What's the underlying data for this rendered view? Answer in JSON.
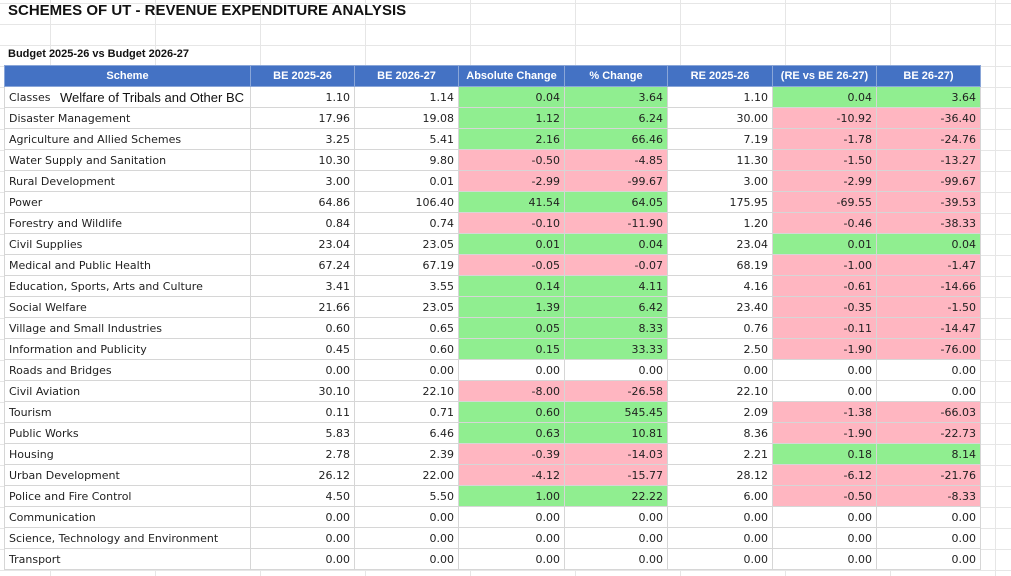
{
  "title": "SCHEMES OF UT - REVENUE EXPENDITURE ANALYSIS",
  "subtitle": "Budget 2025-26 vs Budget 2026-27",
  "headers": [
    "Scheme",
    "BE 2025-26",
    "BE 2026-27",
    "Absolute Change",
    "% Change",
    "RE 2025-26",
    "(RE vs BE 26-27)",
    "BE 26-27)"
  ],
  "overflow_text": "Welfare of Tribals and Other BC",
  "colors": {
    "header_bg": "#4472c4",
    "positive": "#90ee90",
    "negative": "#ffb6c1"
  },
  "rows": [
    {
      "scheme": "Classes",
      "be25": "1.10",
      "be26": "1.14",
      "abs": "0.04",
      "pct": "3.64",
      "re25": "1.10",
      "revbe": "0.04",
      "be2627": "3.64",
      "abs_s": "pos",
      "pct_s": "pos",
      "revbe_s": "pos",
      "be2627_s": "pos"
    },
    {
      "scheme": "Disaster Management",
      "be25": "17.96",
      "be26": "19.08",
      "abs": "1.12",
      "pct": "6.24",
      "re25": "30.00",
      "revbe": "-10.92",
      "be2627": "-36.40",
      "abs_s": "pos",
      "pct_s": "pos",
      "revbe_s": "neg",
      "be2627_s": "neg"
    },
    {
      "scheme": "Agriculture and Allied Schemes",
      "be25": "3.25",
      "be26": "5.41",
      "abs": "2.16",
      "pct": "66.46",
      "re25": "7.19",
      "revbe": "-1.78",
      "be2627": "-24.76",
      "abs_s": "pos",
      "pct_s": "pos",
      "revbe_s": "neg",
      "be2627_s": "neg"
    },
    {
      "scheme": "Water Supply and Sanitation",
      "be25": "10.30",
      "be26": "9.80",
      "abs": "-0.50",
      "pct": "-4.85",
      "re25": "11.30",
      "revbe": "-1.50",
      "be2627": "-13.27",
      "abs_s": "neg",
      "pct_s": "neg",
      "revbe_s": "neg",
      "be2627_s": "neg"
    },
    {
      "scheme": "Rural Development",
      "be25": "3.00",
      "be26": "0.01",
      "abs": "-2.99",
      "pct": "-99.67",
      "re25": "3.00",
      "revbe": "-2.99",
      "be2627": "-99.67",
      "abs_s": "neg",
      "pct_s": "neg",
      "revbe_s": "neg",
      "be2627_s": "neg"
    },
    {
      "scheme": "Power",
      "be25": "64.86",
      "be26": "106.40",
      "abs": "41.54",
      "pct": "64.05",
      "re25": "175.95",
      "revbe": "-69.55",
      "be2627": "-39.53",
      "abs_s": "pos",
      "pct_s": "pos",
      "revbe_s": "neg",
      "be2627_s": "neg"
    },
    {
      "scheme": "Forestry and Wildlife",
      "be25": "0.84",
      "be26": "0.74",
      "abs": "-0.10",
      "pct": "-11.90",
      "re25": "1.20",
      "revbe": "-0.46",
      "be2627": "-38.33",
      "abs_s": "neg",
      "pct_s": "neg",
      "revbe_s": "neg",
      "be2627_s": "neg"
    },
    {
      "scheme": "Civil Supplies",
      "be25": "23.04",
      "be26": "23.05",
      "abs": "0.01",
      "pct": "0.04",
      "re25": "23.04",
      "revbe": "0.01",
      "be2627": "0.04",
      "abs_s": "pos",
      "pct_s": "pos",
      "revbe_s": "pos",
      "be2627_s": "pos"
    },
    {
      "scheme": "Medical and Public Health",
      "be25": "67.24",
      "be26": "67.19",
      "abs": "-0.05",
      "pct": "-0.07",
      "re25": "68.19",
      "revbe": "-1.00",
      "be2627": "-1.47",
      "abs_s": "neg",
      "pct_s": "neg",
      "revbe_s": "neg",
      "be2627_s": "neg"
    },
    {
      "scheme": "Education, Sports, Arts and Culture",
      "be25": "3.41",
      "be26": "3.55",
      "abs": "0.14",
      "pct": "4.11",
      "re25": "4.16",
      "revbe": "-0.61",
      "be2627": "-14.66",
      "abs_s": "pos",
      "pct_s": "pos",
      "revbe_s": "neg",
      "be2627_s": "neg"
    },
    {
      "scheme": "Social Welfare",
      "be25": "21.66",
      "be26": "23.05",
      "abs": "1.39",
      "pct": "6.42",
      "re25": "23.40",
      "revbe": "-0.35",
      "be2627": "-1.50",
      "abs_s": "pos",
      "pct_s": "pos",
      "revbe_s": "neg",
      "be2627_s": "neg"
    },
    {
      "scheme": "Village and Small Industries",
      "be25": "0.60",
      "be26": "0.65",
      "abs": "0.05",
      "pct": "8.33",
      "re25": "0.76",
      "revbe": "-0.11",
      "be2627": "-14.47",
      "abs_s": "pos",
      "pct_s": "pos",
      "revbe_s": "neg",
      "be2627_s": "neg"
    },
    {
      "scheme": "Information and Publicity",
      "be25": "0.45",
      "be26": "0.60",
      "abs": "0.15",
      "pct": "33.33",
      "re25": "2.50",
      "revbe": "-1.90",
      "be2627": "-76.00",
      "abs_s": "pos",
      "pct_s": "pos",
      "revbe_s": "neg",
      "be2627_s": "neg"
    },
    {
      "scheme": "Roads and Bridges",
      "be25": "0.00",
      "be26": "0.00",
      "abs": "0.00",
      "pct": "0.00",
      "re25": "0.00",
      "revbe": "0.00",
      "be2627": "0.00",
      "abs_s": "",
      "pct_s": "",
      "revbe_s": "",
      "be2627_s": ""
    },
    {
      "scheme": "Civil Aviation",
      "be25": "30.10",
      "be26": "22.10",
      "abs": "-8.00",
      "pct": "-26.58",
      "re25": "22.10",
      "revbe": "0.00",
      "be2627": "0.00",
      "abs_s": "neg",
      "pct_s": "neg",
      "revbe_s": "",
      "be2627_s": ""
    },
    {
      "scheme": "Tourism",
      "be25": "0.11",
      "be26": "0.71",
      "abs": "0.60",
      "pct": "545.45",
      "re25": "2.09",
      "revbe": "-1.38",
      "be2627": "-66.03",
      "abs_s": "pos",
      "pct_s": "pos",
      "revbe_s": "neg",
      "be2627_s": "neg"
    },
    {
      "scheme": "Public Works",
      "be25": "5.83",
      "be26": "6.46",
      "abs": "0.63",
      "pct": "10.81",
      "re25": "8.36",
      "revbe": "-1.90",
      "be2627": "-22.73",
      "abs_s": "pos",
      "pct_s": "pos",
      "revbe_s": "neg",
      "be2627_s": "neg"
    },
    {
      "scheme": "Housing",
      "be25": "2.78",
      "be26": "2.39",
      "abs": "-0.39",
      "pct": "-14.03",
      "re25": "2.21",
      "revbe": "0.18",
      "be2627": "8.14",
      "abs_s": "neg",
      "pct_s": "neg",
      "revbe_s": "pos",
      "be2627_s": "pos"
    },
    {
      "scheme": "Urban Development",
      "be25": "26.12",
      "be26": "22.00",
      "abs": "-4.12",
      "pct": "-15.77",
      "re25": "28.12",
      "revbe": "-6.12",
      "be2627": "-21.76",
      "abs_s": "neg",
      "pct_s": "neg",
      "revbe_s": "neg",
      "be2627_s": "neg"
    },
    {
      "scheme": "Police and Fire Control",
      "be25": "4.50",
      "be26": "5.50",
      "abs": "1.00",
      "pct": "22.22",
      "re25": "6.00",
      "revbe": "-0.50",
      "be2627": "-8.33",
      "abs_s": "pos",
      "pct_s": "pos",
      "revbe_s": "neg",
      "be2627_s": "neg"
    },
    {
      "scheme": "Communication",
      "be25": "0.00",
      "be26": "0.00",
      "abs": "0.00",
      "pct": "0.00",
      "re25": "0.00",
      "revbe": "0.00",
      "be2627": "0.00",
      "abs_s": "",
      "pct_s": "",
      "revbe_s": "",
      "be2627_s": ""
    },
    {
      "scheme": "Science, Technology and Environment",
      "be25": "0.00",
      "be26": "0.00",
      "abs": "0.00",
      "pct": "0.00",
      "re25": "0.00",
      "revbe": "0.00",
      "be2627": "0.00",
      "abs_s": "",
      "pct_s": "",
      "revbe_s": "",
      "be2627_s": ""
    },
    {
      "scheme": "Transport",
      "be25": "0.00",
      "be26": "0.00",
      "abs": "0.00",
      "pct": "0.00",
      "re25": "0.00",
      "revbe": "0.00",
      "be2627": "0.00",
      "abs_s": "",
      "pct_s": "",
      "revbe_s": "",
      "be2627_s": ""
    }
  ]
}
